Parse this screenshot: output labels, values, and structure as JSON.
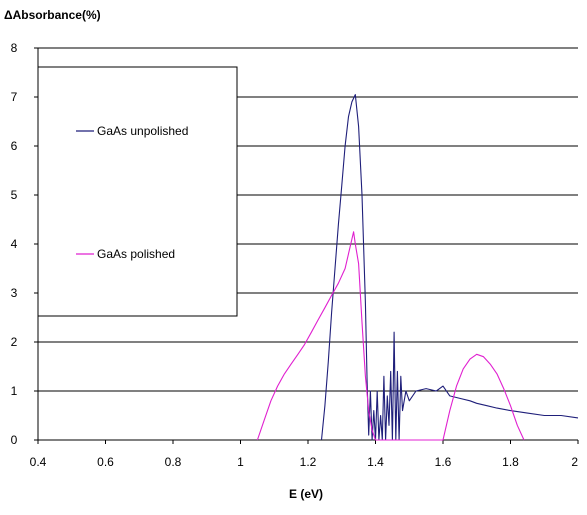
{
  "chart_data": {
    "type": "line",
    "title": "",
    "ylabel": "ΔAbsorbance(%)",
    "xlabel": "E (eV)",
    "xlim": [
      0.4,
      2.0
    ],
    "ylim": [
      0,
      8
    ],
    "xticks": [
      "0.4",
      "0.6",
      "0.8",
      "1",
      "1.2",
      "1.4",
      "1.6",
      "1.8",
      "2"
    ],
    "yticks": [
      "0",
      "1",
      "2",
      "3",
      "4",
      "5",
      "6",
      "7",
      "8"
    ],
    "grid": "horizontal",
    "legend": "top-left box",
    "series": [
      {
        "name": "GaAs unpolished",
        "color": "#1f1f7a",
        "x": [
          1.24,
          1.25,
          1.26,
          1.27,
          1.28,
          1.29,
          1.3,
          1.31,
          1.32,
          1.33,
          1.34,
          1.35,
          1.36,
          1.37,
          1.375,
          1.38,
          1.385,
          1.39,
          1.395,
          1.4,
          1.405,
          1.41,
          1.415,
          1.42,
          1.425,
          1.43,
          1.435,
          1.44,
          1.445,
          1.45,
          1.455,
          1.46,
          1.465,
          1.47,
          1.475,
          1.48,
          1.49,
          1.5,
          1.52,
          1.55,
          1.58,
          1.6,
          1.62,
          1.65,
          1.68,
          1.7,
          1.73,
          1.76,
          1.8,
          1.85,
          1.9,
          1.95,
          2.0
        ],
        "y": [
          0.0,
          0.7,
          1.6,
          2.6,
          3.5,
          4.4,
          5.2,
          6.0,
          6.6,
          6.9,
          7.05,
          6.4,
          5.0,
          2.8,
          1.2,
          0.1,
          1.0,
          0.0,
          0.6,
          0.0,
          1.0,
          0.0,
          0.5,
          0.0,
          1.3,
          0.0,
          0.9,
          0.3,
          1.4,
          0.0,
          2.2,
          0.0,
          1.4,
          0.0,
          1.3,
          0.6,
          1.0,
          0.8,
          1.0,
          1.05,
          1.0,
          1.1,
          0.9,
          0.85,
          0.8,
          0.75,
          0.7,
          0.65,
          0.6,
          0.55,
          0.5,
          0.5,
          0.45
        ]
      },
      {
        "name": "GaAs polished",
        "color": "#e020d0",
        "x": [
          1.05,
          1.07,
          1.09,
          1.11,
          1.13,
          1.15,
          1.17,
          1.19,
          1.21,
          1.23,
          1.25,
          1.27,
          1.29,
          1.31,
          1.32,
          1.33,
          1.335,
          1.34,
          1.35,
          1.36,
          1.37,
          1.38,
          1.39,
          1.4,
          1.41,
          1.42,
          1.43,
          1.44,
          1.45,
          1.46,
          1.47,
          1.48,
          1.49,
          1.5,
          1.52,
          1.55,
          1.58,
          1.6,
          1.62,
          1.64,
          1.66,
          1.68,
          1.7,
          1.72,
          1.74,
          1.76,
          1.78,
          1.8,
          1.82,
          1.84
        ],
        "y": [
          0.0,
          0.4,
          0.8,
          1.1,
          1.35,
          1.55,
          1.75,
          1.95,
          2.2,
          2.45,
          2.7,
          2.95,
          3.2,
          3.5,
          3.8,
          4.1,
          4.25,
          4.0,
          3.6,
          2.4,
          1.3,
          0.6,
          0.2,
          0.0,
          0.0,
          0.0,
          0.0,
          0.0,
          0.0,
          0.0,
          0.0,
          0.0,
          0.0,
          0.0,
          0.0,
          0.0,
          0.0,
          0.0,
          0.6,
          1.1,
          1.45,
          1.65,
          1.75,
          1.7,
          1.55,
          1.35,
          1.05,
          0.7,
          0.3,
          0.0
        ]
      }
    ]
  }
}
